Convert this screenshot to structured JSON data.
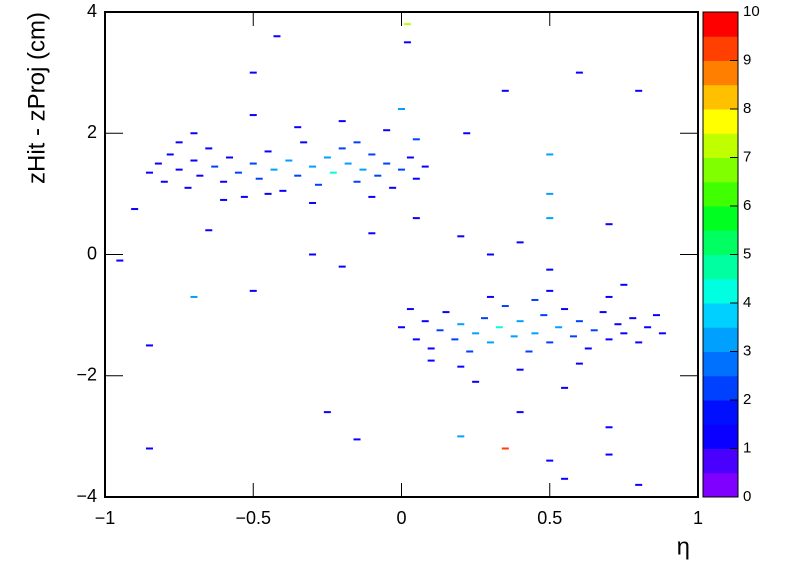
{
  "chart_data": {
    "type": "heatmap",
    "xlabel": "η",
    "ylabel": "zHit - zProj (cm)",
    "xlim": [
      -1,
      1
    ],
    "ylim": [
      -4,
      4
    ],
    "zlim": [
      0,
      10
    ],
    "xticks": [
      {
        "value": -1,
        "label": "−1"
      },
      {
        "value": -0.5,
        "label": "−0.5"
      },
      0,
      0.5,
      1
    ],
    "yticks": [
      {
        "value": -4,
        "label": "−4"
      },
      {
        "value": -2,
        "label": "−2"
      },
      0,
      2,
      4
    ],
    "zticks": [
      0,
      1,
      2,
      3,
      4,
      5,
      6,
      7,
      8,
      9,
      10
    ],
    "palette": [
      "#8000ff",
      "#4a00ff",
      "#0a00ff",
      "#0010ff",
      "#0040ff",
      "#0070ff",
      "#00a0ff",
      "#00d0ff",
      "#00ffe0",
      "#00ffa0",
      "#00ff60",
      "#00ff20",
      "#40ff00",
      "#80ff00",
      "#c0ff00",
      "#ffff00",
      "#ffc000",
      "#ff8000",
      "#ff4000",
      "#ff0000"
    ],
    "points": [
      [
        -0.85,
        1.35,
        1
      ],
      [
        -0.82,
        1.5,
        1
      ],
      [
        -0.8,
        1.2,
        1
      ],
      [
        -0.78,
        1.65,
        1
      ],
      [
        -0.75,
        1.4,
        1
      ],
      [
        -0.72,
        1.1,
        1
      ],
      [
        -0.7,
        1.55,
        1
      ],
      [
        -0.68,
        1.3,
        1
      ],
      [
        -0.65,
        1.75,
        1
      ],
      [
        -0.63,
        1.45,
        2
      ],
      [
        -0.6,
        1.2,
        1
      ],
      [
        -0.58,
        1.6,
        1
      ],
      [
        -0.55,
        1.35,
        2
      ],
      [
        -0.53,
        0.95,
        1
      ],
      [
        -0.5,
        1.5,
        2
      ],
      [
        -0.48,
        1.25,
        2
      ],
      [
        -0.45,
        1.7,
        1
      ],
      [
        -0.43,
        1.4,
        3
      ],
      [
        -0.4,
        1.05,
        1
      ],
      [
        -0.38,
        1.55,
        3
      ],
      [
        -0.35,
        1.3,
        2
      ],
      [
        -0.33,
        1.85,
        1
      ],
      [
        -0.3,
        1.45,
        3
      ],
      [
        -0.28,
        1.15,
        2
      ],
      [
        -0.25,
        1.6,
        3
      ],
      [
        -0.23,
        1.35,
        4
      ],
      [
        -0.2,
        1.75,
        2
      ],
      [
        -0.18,
        1.5,
        3
      ],
      [
        -0.15,
        1.2,
        2
      ],
      [
        -0.13,
        1.4,
        3
      ],
      [
        -0.1,
        1.65,
        2
      ],
      [
        -0.08,
        1.3,
        2
      ],
      [
        -0.05,
        1.5,
        2
      ],
      [
        -0.03,
        1.1,
        1
      ],
      [
        0.0,
        1.4,
        2
      ],
      [
        0.03,
        1.6,
        1
      ],
      [
        0.05,
        1.25,
        1
      ],
      [
        0.08,
        1.45,
        1
      ],
      [
        -0.9,
        0.75,
        1
      ],
      [
        -0.6,
        0.9,
        1
      ],
      [
        -0.3,
        0.85,
        1
      ],
      [
        -0.1,
        0.95,
        1
      ],
      [
        -0.7,
        2.0,
        1
      ],
      [
        -0.5,
        2.3,
        1
      ],
      [
        -0.35,
        2.1,
        1
      ],
      [
        -0.2,
        2.2,
        1
      ],
      [
        -0.05,
        2.05,
        1
      ],
      [
        -0.45,
        1.0,
        1
      ],
      [
        -0.15,
        1.85,
        2
      ],
      [
        -0.75,
        1.85,
        1
      ],
      [
        0.0,
        -1.2,
        1
      ],
      [
        0.03,
        -0.9,
        1
      ],
      [
        0.05,
        -1.4,
        1
      ],
      [
        0.08,
        -1.1,
        1
      ],
      [
        0.1,
        -1.55,
        1
      ],
      [
        0.13,
        -1.25,
        2
      ],
      [
        0.15,
        -0.95,
        1
      ],
      [
        0.18,
        -1.4,
        2
      ],
      [
        0.2,
        -1.15,
        3
      ],
      [
        0.23,
        -1.6,
        2
      ],
      [
        0.25,
        -1.3,
        3
      ],
      [
        0.28,
        -1.05,
        2
      ],
      [
        0.3,
        -1.45,
        3
      ],
      [
        0.33,
        -1.2,
        4
      ],
      [
        0.35,
        -0.85,
        2
      ],
      [
        0.38,
        -1.35,
        3
      ],
      [
        0.4,
        -1.1,
        3
      ],
      [
        0.43,
        -1.6,
        2
      ],
      [
        0.45,
        -1.3,
        3
      ],
      [
        0.48,
        -1.0,
        2
      ],
      [
        0.5,
        -1.45,
        2
      ],
      [
        0.53,
        -1.2,
        3
      ],
      [
        0.55,
        -0.9,
        1
      ],
      [
        0.58,
        -1.35,
        2
      ],
      [
        0.6,
        -1.1,
        2
      ],
      [
        0.63,
        -1.55,
        1
      ],
      [
        0.65,
        -1.25,
        2
      ],
      [
        0.68,
        -0.95,
        1
      ],
      [
        0.7,
        -1.4,
        1
      ],
      [
        0.73,
        -1.15,
        1
      ],
      [
        0.75,
        -1.3,
        1
      ],
      [
        0.78,
        -1.05,
        1
      ],
      [
        0.8,
        -1.45,
        1
      ],
      [
        0.83,
        -1.2,
        1
      ],
      [
        0.86,
        -1.0,
        1
      ],
      [
        0.88,
        -1.3,
        1
      ],
      [
        0.2,
        -1.85,
        1
      ],
      [
        0.4,
        -1.9,
        1
      ],
      [
        0.6,
        -1.8,
        1
      ],
      [
        0.3,
        -0.7,
        1
      ],
      [
        0.5,
        -0.6,
        1
      ],
      [
        0.7,
        -0.7,
        1
      ],
      [
        0.25,
        -2.1,
        1
      ],
      [
        0.55,
        -2.2,
        1
      ],
      [
        0.1,
        -1.75,
        1
      ],
      [
        0.45,
        -0.75,
        2
      ],
      [
        -0.42,
        3.6,
        1
      ],
      [
        0.02,
        3.5,
        1
      ],
      [
        0.02,
        3.8,
        7
      ],
      [
        0.35,
        2.7,
        1
      ],
      [
        0.6,
        3.0,
        1
      ],
      [
        -0.7,
        -0.7,
        3
      ],
      [
        -0.2,
        -0.2,
        1
      ],
      [
        -0.5,
        -0.6,
        1
      ],
      [
        -0.85,
        -1.5,
        1
      ],
      [
        -0.85,
        -3.2,
        1
      ],
      [
        -0.25,
        -2.6,
        1
      ],
      [
        -0.15,
        -3.05,
        1
      ],
      [
        0.2,
        -3.0,
        3
      ],
      [
        0.35,
        -3.2,
        9
      ],
      [
        0.5,
        -3.4,
        1
      ],
      [
        0.7,
        -3.3,
        1
      ],
      [
        0.1,
        -4.0,
        1
      ],
      [
        0.55,
        -3.7,
        1
      ],
      [
        0.8,
        -3.8,
        1
      ],
      [
        0.5,
        -0.25,
        1
      ],
      [
        0.2,
        0.3,
        1
      ],
      [
        0.05,
        0.6,
        1
      ],
      [
        0.05,
        1.9,
        2
      ],
      [
        0.22,
        2.0,
        1
      ],
      [
        0.5,
        0.6,
        3
      ],
      [
        0.7,
        0.5,
        1
      ],
      [
        -0.65,
        0.4,
        1
      ],
      [
        -0.3,
        0.0,
        1
      ],
      [
        0.4,
        0.2,
        1
      ],
      [
        -0.95,
        -0.1,
        1
      ],
      [
        0.75,
        -0.5,
        1
      ],
      [
        0.4,
        -2.6,
        1
      ],
      [
        0.7,
        -2.85,
        1
      ],
      [
        -0.5,
        3.0,
        1
      ],
      [
        0.0,
        2.4,
        3
      ],
      [
        0.8,
        2.7,
        1
      ],
      [
        0.5,
        1.65,
        3
      ],
      [
        0.5,
        1.0,
        3
      ],
      [
        -0.1,
        0.35,
        1
      ],
      [
        0.3,
        0.0,
        1
      ]
    ]
  }
}
